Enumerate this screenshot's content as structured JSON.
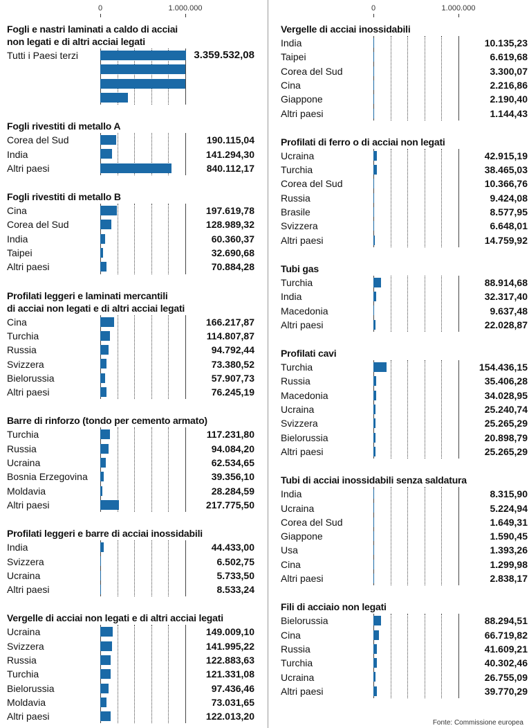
{
  "chart_data": [
    {
      "type": "bar",
      "title": "Fogli e nastri laminati a caldo di acciai\nnon legati e di altri acciai legati",
      "categories": [
        "Tutti i Paesi terzi",
        null,
        null,
        null
      ],
      "values": [
        3359532.08,
        1000000,
        1000000,
        325000
      ],
      "value_labels": [
        "3.359.532,08",
        null,
        null,
        null
      ]
    },
    {
      "type": "bar",
      "title": "Fogli rivestiti di metallo A",
      "categories": [
        "Corea del Sud",
        "India",
        "Altri paesi"
      ],
      "values": [
        190115.04,
        141294.3,
        840112.17
      ],
      "value_labels": [
        "190.115,04",
        "141.294,30",
        "840.112,17"
      ]
    },
    {
      "type": "bar",
      "title": "Fogli rivestiti di metallo B",
      "categories": [
        "Cina",
        "Corea del Sud",
        "India",
        "Taipei",
        "Altri paesi"
      ],
      "values": [
        197619.78,
        128989.32,
        60360.37,
        32690.68,
        70884.28
      ],
      "value_labels": [
        "197.619,78",
        "128.989,32",
        "60.360,37",
        "32.690,68",
        "70.884,28"
      ]
    },
    {
      "type": "bar",
      "title": "Profilati leggeri e laminati mercantili\ndi acciai non legati e di altri acciai legati",
      "categories": [
        "Cina",
        "Turchia",
        "Russia",
        "Svizzera",
        "Bielorussia",
        "Altri paesi"
      ],
      "values": [
        166217.87,
        114807.87,
        94792.44,
        73380.52,
        57907.73,
        76245.19
      ],
      "value_labels": [
        "166.217,87",
        "114.807,87",
        "94.792,44",
        "73.380,52",
        "57.907,73",
        "76.245,19"
      ]
    },
    {
      "type": "bar",
      "title": "Barre di rinforzo (tondo per cemento armato)",
      "categories": [
        "Turchia",
        "Russia",
        "Ucraina",
        "Bosnia Erzegovina",
        "Moldavia",
        "Altri paesi"
      ],
      "values": [
        117231.8,
        94084.2,
        62534.65,
        39356.1,
        28284.59,
        217775.5
      ],
      "value_labels": [
        "117.231,80",
        "94.084,20",
        "62.534,65",
        "39.356,10",
        "28.284,59",
        "217.775,50"
      ]
    },
    {
      "type": "bar",
      "title": "Profilati leggeri e barre di acciai inossidabili",
      "categories": [
        "India",
        "Svizzera",
        "Ucraina",
        "Altri paesi"
      ],
      "values": [
        44433.0,
        6502.75,
        5733.5,
        8533.24
      ],
      "value_labels": [
        "44.433,00",
        "6.502,75",
        "5.733,50",
        "8.533,24"
      ]
    },
    {
      "type": "bar",
      "title": "Vergelle di acciai non legati e di altri acciai legati",
      "categories": [
        "Ucraina",
        "Svizzera",
        "Russia",
        "Turchia",
        "Bielorussia",
        "Moldavia",
        "Altri paesi"
      ],
      "values": [
        149009.1,
        141995.22,
        122883.63,
        121331.08,
        97436.46,
        73031.65,
        122013.2
      ],
      "value_labels": [
        "149.009,10",
        "141.995,22",
        "122.883,63",
        "121.331,08",
        "97.436,46",
        "73.031,65",
        "122.013,20"
      ]
    },
    {
      "type": "bar",
      "title": "Vergelle di acciai inossidabili",
      "categories": [
        "India",
        "Taipei",
        "Corea del Sud",
        "Cina",
        "Giappone",
        "Altri paesi"
      ],
      "values": [
        10135.23,
        6619.68,
        3300.07,
        2216.86,
        2190.4,
        1144.43
      ],
      "value_labels": [
        "10.135,23",
        "6.619,68",
        "3.300,07",
        "2.216,86",
        "2.190,40",
        "1.144,43"
      ]
    },
    {
      "type": "bar",
      "title": "Profilati di ferro o di acciai non legati",
      "categories": [
        "Ucraina",
        "Turchia",
        "Corea del Sud",
        "Russia",
        "Brasile",
        "Svizzera",
        "Altri paesi"
      ],
      "values": [
        42915.19,
        38465.03,
        10366.76,
        9424.08,
        8577.95,
        6648.01,
        14759.92
      ],
      "value_labels": [
        "42.915,19",
        "38.465,03",
        "10.366,76",
        "9.424,08",
        "8.577,95",
        "6.648,01",
        "14.759,92"
      ]
    },
    {
      "type": "bar",
      "title": "Tubi gas",
      "categories": [
        "Turchia",
        "India",
        "Macedonia",
        "Altri paesi"
      ],
      "values": [
        88914.68,
        32317.4,
        9637.48,
        22028.87
      ],
      "value_labels": [
        "88.914,68",
        "32.317,40",
        "9.637,48",
        "22.028,87"
      ]
    },
    {
      "type": "bar",
      "title": "Profilati cavi",
      "categories": [
        "Turchia",
        "Russia",
        "Macedonia",
        "Ucraina",
        "Svizzera",
        "Bielorussia",
        "Altri paesi"
      ],
      "values": [
        154436.15,
        35406.28,
        34028.95,
        25240.74,
        25265.29,
        20898.79,
        25265.29
      ],
      "value_labels": [
        "154.436,15",
        "35.406,28",
        "34.028,95",
        "25.240,74",
        "25.265,29",
        "20.898,79",
        "25.265,29"
      ]
    },
    {
      "type": "bar",
      "title": "Tubi di acciai inossidabili senza saldatura",
      "categories": [
        "India",
        "Ucraina",
        "Corea del Sud",
        "Giappone",
        "Usa",
        "Cina",
        "Altri paesi"
      ],
      "values": [
        8315.9,
        5224.94,
        1649.31,
        1590.45,
        1393.26,
        1299.98,
        2838.17
      ],
      "value_labels": [
        "8.315,90",
        "5.224,94",
        "1.649,31",
        "1.590,45",
        "1.393,26",
        "1.299,98",
        "2.838,17"
      ]
    },
    {
      "type": "bar",
      "title": "Fili di acciaio non legati",
      "categories": [
        "Bielorussia",
        "Cina",
        "Russia",
        "Turchia",
        "Ucraina",
        "Altri paesi"
      ],
      "values": [
        88294.51,
        66719.82,
        41609.21,
        40302.46,
        26755.09,
        39770.29
      ],
      "value_labels": [
        "88.294,51",
        "66.719,82",
        "41.609,21",
        "40.302,46",
        "26.755,09",
        "39.770,29"
      ]
    }
  ],
  "axis": {
    "xlim": [
      0,
      1000000
    ],
    "xticks": [
      0,
      {
        "value": 1000000,
        "label": "1.000.000"
      }
    ],
    "minor_ticks": [
      200000,
      400000,
      600000,
      800000
    ],
    "grid": true
  },
  "color": "#1b6aa7",
  "source": "Fonte: Commissione europea"
}
